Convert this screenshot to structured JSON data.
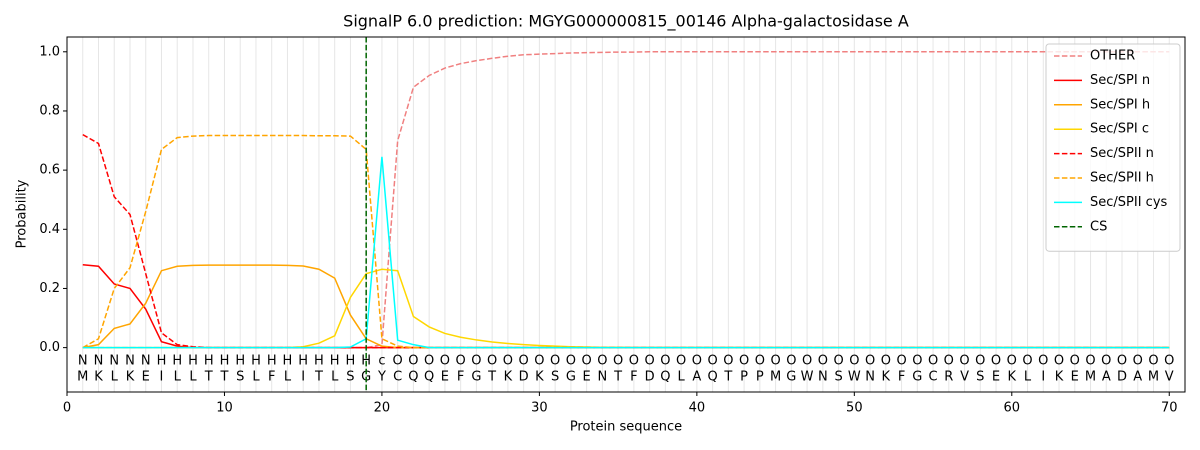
{
  "chart_data": {
    "type": "line",
    "title": "SignalP 6.0 prediction: MGYG000000815_00146 Alpha-galactosidase A",
    "x_label": "Protein sequence",
    "y_label": "Probability",
    "x": [
      1,
      2,
      3,
      4,
      5,
      6,
      7,
      8,
      9,
      10,
      11,
      12,
      13,
      14,
      15,
      16,
      17,
      18,
      19,
      20,
      21,
      22,
      23,
      24,
      25,
      26,
      27,
      28,
      29,
      30,
      31,
      32,
      33,
      34,
      35,
      36,
      37,
      38,
      39,
      40,
      41,
      42,
      43,
      44,
      45,
      46,
      47,
      48,
      49,
      50,
      51,
      52,
      53,
      54,
      55,
      56,
      57,
      58,
      59,
      60,
      61,
      62,
      63,
      64,
      65,
      66,
      67,
      68,
      69,
      70
    ],
    "sequence": [
      "M",
      "K",
      "L",
      "K",
      "E",
      "I",
      "L",
      "L",
      "T",
      "T",
      "S",
      "L",
      "F",
      "L",
      "I",
      "T",
      "L",
      "S",
      "G",
      "Y",
      "C",
      "Q",
      "Q",
      "E",
      "F",
      "G",
      "T",
      "K",
      "D",
      "K",
      "S",
      "G",
      "E",
      "N",
      "T",
      "F",
      "D",
      "Q",
      "L",
      "A",
      "Q",
      "T",
      "P",
      "P",
      "M",
      "G",
      "W",
      "N",
      "S",
      "W",
      "N",
      "K",
      "F",
      "G",
      "C",
      "R",
      "V",
      "S",
      "E",
      "K",
      "L",
      "I",
      "K",
      "E",
      "M",
      "A",
      "D",
      "A",
      "M",
      "V"
    ],
    "annotations": [
      "N",
      "N",
      "N",
      "N",
      "N",
      "H",
      "H",
      "H",
      "H",
      "H",
      "H",
      "H",
      "H",
      "H",
      "H",
      "H",
      "H",
      "H",
      "H",
      "c",
      "O",
      "O",
      "O",
      "O",
      "O",
      "O",
      "O",
      "O",
      "O",
      "O",
      "O",
      "O",
      "O",
      "O",
      "O",
      "O",
      "O",
      "O",
      "O",
      "O",
      "O",
      "O",
      "O",
      "O",
      "O",
      "O",
      "O",
      "O",
      "O",
      "O",
      "O",
      "O",
      "O",
      "O",
      "O",
      "O",
      "O",
      "O",
      "O",
      "O",
      "O",
      "O",
      "O",
      "O",
      "O",
      "O",
      "O",
      "O",
      "O",
      "O"
    ],
    "annotation_colors": {
      "N": "#ff0000",
      "H": "#ffa500",
      "c": "#00e5e5",
      "O": "#808080"
    },
    "series": [
      {
        "name": "OTHER",
        "color": "#f08080",
        "dash": true,
        "values": [
          0,
          0,
          0,
          0,
          0,
          0,
          0,
          0,
          0,
          0,
          0,
          0,
          0,
          0,
          0,
          0,
          0,
          0,
          0,
          0.01,
          0.7,
          0.88,
          0.92,
          0.945,
          0.96,
          0.97,
          0.978,
          0.985,
          0.99,
          0.992,
          0.994,
          0.996,
          0.997,
          0.998,
          0.999,
          0.999,
          1,
          1,
          1,
          1,
          1,
          1,
          1,
          1,
          1,
          1,
          1,
          1,
          1,
          1,
          1,
          1,
          1,
          1,
          1,
          1,
          1,
          1,
          1,
          1,
          1,
          1,
          1,
          1,
          1,
          1,
          1,
          1,
          1,
          1
        ]
      },
      {
        "name": "Sec/SPI n",
        "color": "#ff0000",
        "dash": false,
        "values": [
          0.28,
          0.275,
          0.215,
          0.2,
          0.13,
          0.02,
          0.005,
          0,
          0,
          0,
          0,
          0,
          0,
          0,
          0,
          0,
          0,
          0,
          0,
          0,
          0,
          0,
          0,
          0,
          0,
          0,
          0,
          0,
          0,
          0,
          0,
          0,
          0,
          0,
          0,
          0,
          0,
          0,
          0,
          0,
          0,
          0,
          0,
          0,
          0,
          0,
          0,
          0,
          0,
          0,
          0,
          0,
          0,
          0,
          0,
          0,
          0,
          0,
          0,
          0,
          0,
          0,
          0,
          0,
          0,
          0,
          0,
          0,
          0,
          0
        ]
      },
      {
        "name": "Sec/SPI h",
        "color": "#ffa500",
        "dash": false,
        "values": [
          0,
          0.01,
          0.065,
          0.08,
          0.15,
          0.26,
          0.275,
          0.278,
          0.279,
          0.279,
          0.279,
          0.279,
          0.279,
          0.278,
          0.276,
          0.265,
          0.235,
          0.11,
          0.03,
          0.005,
          0,
          0,
          0,
          0,
          0,
          0,
          0,
          0,
          0,
          0,
          0,
          0,
          0,
          0,
          0,
          0,
          0,
          0,
          0,
          0,
          0,
          0,
          0,
          0,
          0,
          0,
          0,
          0,
          0,
          0,
          0,
          0,
          0,
          0,
          0,
          0,
          0,
          0,
          0,
          0,
          0,
          0,
          0,
          0,
          0,
          0,
          0,
          0,
          0,
          0
        ]
      },
      {
        "name": "Sec/SPI c",
        "color": "#ffd700",
        "dash": false,
        "values": [
          0,
          0,
          0,
          0,
          0,
          0,
          0,
          0,
          0,
          0,
          0,
          0,
          0,
          0,
          0.003,
          0.015,
          0.04,
          0.17,
          0.25,
          0.265,
          0.26,
          0.105,
          0.07,
          0.048,
          0.035,
          0.026,
          0.019,
          0.014,
          0.01,
          0.007,
          0.005,
          0.003,
          0.002,
          0.001,
          0.001,
          0,
          0,
          0,
          0,
          0,
          0,
          0,
          0,
          0,
          0,
          0,
          0,
          0,
          0,
          0,
          0,
          0,
          0,
          0,
          0,
          0,
          0,
          0,
          0,
          0,
          0,
          0,
          0,
          0,
          0,
          0,
          0,
          0,
          0,
          0
        ]
      },
      {
        "name": "Sec/SPII n",
        "color": "#ff0000",
        "dash": true,
        "values": [
          0.72,
          0.69,
          0.51,
          0.45,
          0.25,
          0.05,
          0.01,
          0.003,
          0,
          0,
          0,
          0,
          0,
          0,
          0,
          0,
          0,
          0,
          0,
          0,
          0,
          0,
          0,
          0,
          0,
          0,
          0,
          0,
          0,
          0,
          0,
          0,
          0,
          0,
          0,
          0,
          0,
          0,
          0,
          0,
          0,
          0,
          0,
          0,
          0,
          0,
          0,
          0,
          0,
          0,
          0,
          0,
          0,
          0,
          0,
          0,
          0,
          0,
          0,
          0,
          0,
          0,
          0,
          0,
          0,
          0,
          0,
          0,
          0,
          0
        ]
      },
      {
        "name": "Sec/SPII h",
        "color": "#ffa500",
        "dash": true,
        "values": [
          0,
          0.03,
          0.2,
          0.27,
          0.46,
          0.67,
          0.71,
          0.715,
          0.717,
          0.717,
          0.717,
          0.717,
          0.717,
          0.717,
          0.717,
          0.716,
          0.716,
          0.715,
          0.67,
          0.03,
          0.005,
          0,
          0,
          0,
          0,
          0,
          0,
          0,
          0,
          0,
          0,
          0,
          0,
          0,
          0,
          0,
          0,
          0,
          0,
          0,
          0,
          0,
          0,
          0,
          0,
          0,
          0,
          0,
          0,
          0,
          0,
          0,
          0,
          0,
          0,
          0,
          0,
          0,
          0,
          0,
          0,
          0,
          0,
          0,
          0,
          0,
          0,
          0,
          0,
          0
        ]
      },
      {
        "name": "Sec/SPII cys",
        "color": "#00ffff",
        "dash": false,
        "values": [
          0,
          0,
          0,
          0,
          0,
          0,
          0,
          0,
          0,
          0,
          0,
          0,
          0,
          0,
          0,
          0,
          0,
          0.002,
          0.03,
          0.645,
          0.025,
          0.01,
          0,
          0,
          0,
          0,
          0,
          0,
          0,
          0,
          0,
          0,
          0,
          0,
          0,
          0,
          0,
          0,
          0,
          0,
          0,
          0,
          0,
          0,
          0,
          0,
          0,
          0,
          0,
          0,
          0,
          0,
          0,
          0,
          0,
          0,
          0,
          0,
          0,
          0,
          0,
          0,
          0,
          0,
          0,
          0,
          0,
          0,
          0,
          0
        ]
      }
    ],
    "cs_label": "CS",
    "cs_position": 19,
    "cs_color": "#006400",
    "xlim": [
      0,
      71
    ],
    "ylim": [
      -0.15,
      1.05
    ],
    "xticks": [
      0,
      10,
      20,
      30,
      40,
      50,
      60,
      70
    ],
    "yticks": [
      {
        "value": 0,
        "label": "0.0"
      },
      {
        "value": 0.2,
        "label": "0.2"
      },
      {
        "value": 0.4,
        "label": "0.4"
      },
      {
        "value": 0.6,
        "label": "0.6"
      },
      {
        "value": 0.8,
        "label": "0.8"
      },
      {
        "value": 1,
        "label": "1.0"
      }
    ],
    "grid": true,
    "legend": "upper right"
  }
}
